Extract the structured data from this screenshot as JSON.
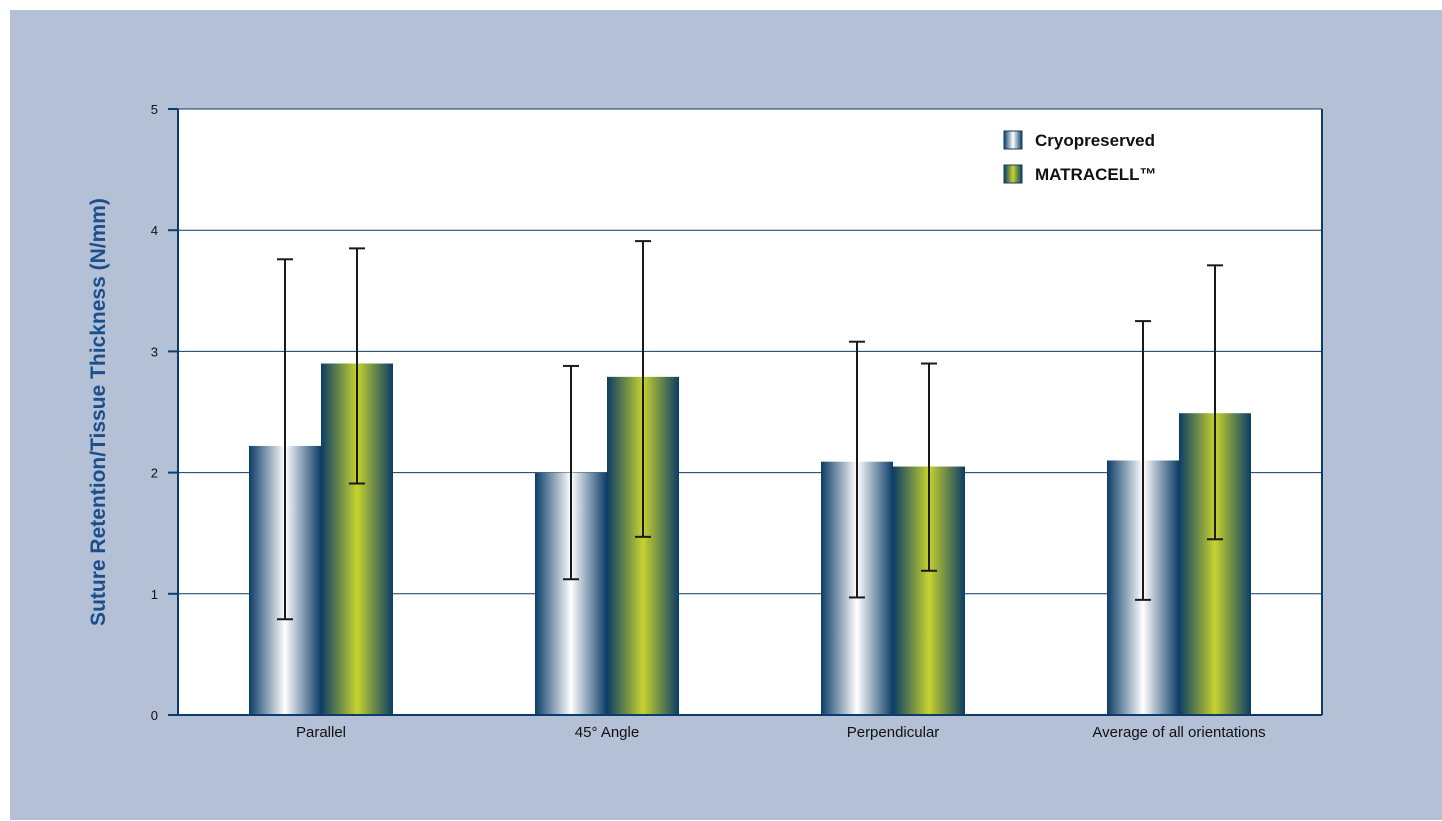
{
  "chart_data": {
    "type": "bar",
    "title": "",
    "xlabel": "",
    "ylabel": "Suture Retention/Tissue Thickness (N/mm)",
    "ylim": [
      0,
      5
    ],
    "yticks": [
      "0",
      "1",
      "2",
      "3",
      "4",
      "5"
    ],
    "grid": true,
    "legend_position": "top-right",
    "categories": [
      "Parallel",
      "45° Angle",
      "Perpendicular",
      "Average of all orientations"
    ],
    "series": [
      {
        "name": "Cryopreserved",
        "values": [
          2.22,
          2.0,
          2.09,
          2.1
        ],
        "error_low": [
          0.79,
          1.12,
          0.97,
          0.95
        ],
        "error_high": [
          3.76,
          2.88,
          3.08,
          3.25
        ],
        "colors": [
          "#0b3d66",
          "#ffffff"
        ]
      },
      {
        "name": "MATRACELL™",
        "values": [
          2.9,
          2.79,
          2.05,
          2.49
        ],
        "error_low": [
          1.91,
          1.47,
          1.19,
          1.45
        ],
        "error_high": [
          3.85,
          3.91,
          2.9,
          3.71
        ],
        "colors": [
          "#0b3d66",
          "#c6d22e"
        ]
      }
    ]
  },
  "colors": {
    "background": "#b4c0d6",
    "plot_area": "#ffffff",
    "axis": "#0d3b6e",
    "ylabel": "#1b4f8c",
    "error_bar": "#1a1a1a"
  }
}
